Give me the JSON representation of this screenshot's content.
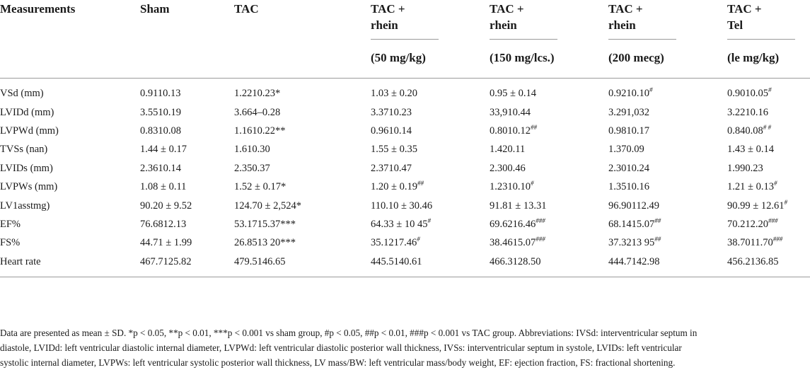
{
  "table": {
    "header": {
      "measurements": "Measurements",
      "sham": "Sham",
      "tac": "TAC",
      "groups": [
        {
          "line1": "TAC +",
          "line2": "rhein",
          "dose": "(50 mg/kg)"
        },
        {
          "line1": "TAC +",
          "line2": "rhein",
          "dose": "(150 mg/lcs.)"
        },
        {
          "line1": "TAC +",
          "line2": "rhein",
          "dose": "(200 mecg)"
        },
        {
          "line1": "TAC +",
          "line2": "Tel",
          "dose": "(le mg/kg)"
        }
      ]
    },
    "rows": [
      {
        "label": "VSd (mm)",
        "cells": [
          {
            "v": "0.9110.13",
            "s": ""
          },
          {
            "v": "1.2210.23*",
            "s": ""
          },
          {
            "v": "1.03 ± 0.20",
            "s": ""
          },
          {
            "v": "0.95 ± 0.14",
            "s": ""
          },
          {
            "v": "0.9210.10",
            "s": "#"
          },
          {
            "v": "0.9010.05",
            "s": "#"
          }
        ]
      },
      {
        "label": "LVIDd (mm)",
        "cells": [
          {
            "v": "3.5510.19",
            "s": ""
          },
          {
            "v": "3.664–0.28",
            "s": ""
          },
          {
            "v": "3.3710.23",
            "s": ""
          },
          {
            "v": "33,910.44",
            "s": ""
          },
          {
            "v": "3.291,032",
            "s": ""
          },
          {
            "v": "3.2210.16",
            "s": ""
          }
        ]
      },
      {
        "label": "LVPWd (mm)",
        "cells": [
          {
            "v": "0.8310.08",
            "s": ""
          },
          {
            "v": "1.1610.22**",
            "s": ""
          },
          {
            "v": "0.9610.14",
            "s": ""
          },
          {
            "v": "0.8010.12",
            "s": "##"
          },
          {
            "v": "0.9810.17",
            "s": ""
          },
          {
            "v": "0.840.08",
            "s": "# #"
          }
        ]
      },
      {
        "label": "TVSs (nan)",
        "cells": [
          {
            "v": "1.44 ± 0.17",
            "s": ""
          },
          {
            "v": "1.610.30",
            "s": ""
          },
          {
            "v": "1.55 ± 0.35",
            "s": ""
          },
          {
            "v": "1.420.11",
            "s": ""
          },
          {
            "v": "1.370.09",
            "s": ""
          },
          {
            "v": "1.43 ± 0.14",
            "s": ""
          }
        ]
      },
      {
        "label": "LVIDs (mm)",
        "cells": [
          {
            "v": "2.3610.14",
            "s": ""
          },
          {
            "v": "2.350.37",
            "s": ""
          },
          {
            "v": "2.3710.47",
            "s": ""
          },
          {
            "v": "2.300.46",
            "s": ""
          },
          {
            "v": "2.3010.24",
            "s": ""
          },
          {
            "v": "1.990.23",
            "s": ""
          }
        ]
      },
      {
        "label": "LVPWs (mm)",
        "cells": [
          {
            "v": "1.08 ± 0.11",
            "s": ""
          },
          {
            "v": "1.52 ± 0.17*",
            "s": ""
          },
          {
            "v": "1.20 ± 0.19",
            "s": "##"
          },
          {
            "v": "1.2310.10",
            "s": "#"
          },
          {
            "v": "1.3510.16",
            "s": ""
          },
          {
            "v": "1.21 ± 0.13",
            "s": "#"
          }
        ]
      },
      {
        "label": "LV1asstmg)",
        "cells": [
          {
            "v": "90.20 ± 9.52",
            "s": ""
          },
          {
            "v": "124.70 ± 2,524*",
            "s": ""
          },
          {
            "v": "110.10 ± 30.46",
            "s": ""
          },
          {
            "v": "91.81 ± 13.31",
            "s": ""
          },
          {
            "v": "96.90112.49",
            "s": ""
          },
          {
            "v": "90.99 ± 12.61",
            "s": "#"
          }
        ]
      },
      {
        "label": "EF%",
        "cells": [
          {
            "v": "76.6812.13",
            "s": ""
          },
          {
            "v": "53.1715.37***",
            "s": ""
          },
          {
            "v": "64.33 ± 10 45",
            "s": "#"
          },
          {
            "v": "69.6216.46",
            "s": "###"
          },
          {
            "v": "68.1415.07",
            "s": "##"
          },
          {
            "v": "70.212.20",
            "s": "###"
          }
        ]
      },
      {
        "label": "FS%",
        "cells": [
          {
            "v": "44.71 ± 1.99",
            "s": ""
          },
          {
            "v": "26.8513 20***",
            "s": ""
          },
          {
            "v": "35.1217.46",
            "s": "#"
          },
          {
            "v": "38.4615.07",
            "s": "###"
          },
          {
            "v": "37.3213 95",
            "s": "##"
          },
          {
            "v": "38.7011.70",
            "s": "###"
          }
        ]
      },
      {
        "label": "Heart rate",
        "cells": [
          {
            "v": "467.7125.82",
            "s": ""
          },
          {
            "v": "479.5146.65",
            "s": ""
          },
          {
            "v": "445.5140.61",
            "s": ""
          },
          {
            "v": "466.3128.50",
            "s": ""
          },
          {
            "v": "444.7142.98",
            "s": ""
          },
          {
            "v": "456.2136.85",
            "s": ""
          }
        ]
      }
    ],
    "footnote": {
      "line1": "Data are presented as mean ± SD. *p < 0.05, **p < 0.01, ***p < 0.001 vs sham group, #p < 0.05, ##p < 0.01, ###p < 0.001 vs TAC group. Abbreviations: IVSd: interventricular septum in",
      "line2": "diastole, LVIDd: left ventricular diastolic internal diameter, LVPWd: left ventricular diastolic posterior wall thickness, IVSs: interventricular septum in systole, LVIDs: left ventricular",
      "line3": "systolic internal diameter, LVPWs: left ventricular systolic posterior wall thickness, LV mass/BW: left ventricular mass/body weight, EF: ejection fraction, FS: fractional shortening."
    }
  }
}
